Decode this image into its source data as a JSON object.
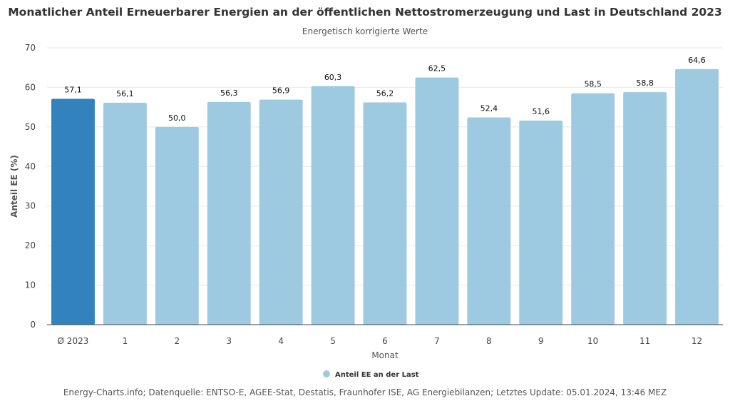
{
  "chart_data": {
    "type": "bar",
    "title": "Monatlicher Anteil Erneuerbarer Energien an der öffentlichen Nettostromerzeugung und Last in Deutschland 2023",
    "subtitle": "Energetisch korrigierte Werte",
    "xlabel": "Monat",
    "ylabel": "Anteil EE (%)",
    "ylim": [
      0,
      70
    ],
    "yticks": [
      0,
      10,
      20,
      30,
      40,
      50,
      60,
      70
    ],
    "grid": true,
    "categories": [
      "Ø 2023",
      "1",
      "2",
      "3",
      "4",
      "5",
      "6",
      "7",
      "8",
      "9",
      "10",
      "11",
      "12"
    ],
    "series": [
      {
        "name": "Anteil EE an der Last",
        "values": [
          57.1,
          56.1,
          50.0,
          56.3,
          56.9,
          60.3,
          56.2,
          62.5,
          52.4,
          51.6,
          58.5,
          58.8,
          64.6
        ],
        "labels": [
          "57,1",
          "56,1",
          "50,0",
          "56,3",
          "56,9",
          "60,3",
          "56,2",
          "62,5",
          "52,4",
          "51,6",
          "58,5",
          "58,8",
          "64,6"
        ]
      }
    ],
    "colors": {
      "average": "#3182bd",
      "month": "#9ecae1"
    },
    "legend_position": "bottom"
  },
  "footer": "Energy-Charts.info; Datenquelle: ENTSO-E, AGEE-Stat, Destatis, Fraunhofer ISE, AG Energiebilanzen; Letztes Update: 05.01.2024, 13:46 MEZ"
}
